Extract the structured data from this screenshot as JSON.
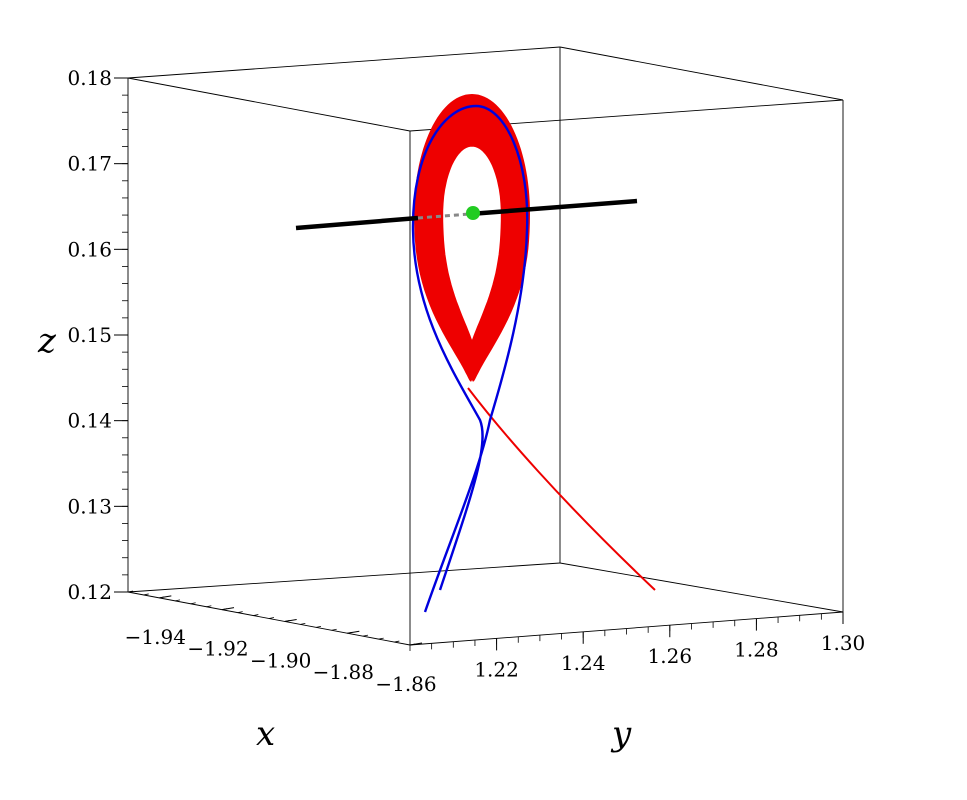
{
  "chart_data": {
    "type": "3d-line",
    "title": "",
    "xlabel": "x",
    "ylabel": "y",
    "zlabel": "z",
    "xlim": [
      -1.95,
      -1.86
    ],
    "ylim": [
      1.2,
      1.3
    ],
    "zlim": [
      0.12,
      0.18
    ],
    "x_ticks": [
      -1.94,
      -1.92,
      -1.9,
      -1.88,
      -1.86
    ],
    "x_tick_labels": [
      "−1.94",
      "−1.92",
      "−1.90",
      "−1.88",
      "−1.86"
    ],
    "y_ticks": [
      1.22,
      1.24,
      1.26,
      1.28,
      1.3
    ],
    "y_tick_labels": [
      "1.22",
      "1.24",
      "1.26",
      "1.28",
      "1.30"
    ],
    "z_ticks": [
      0.12,
      0.13,
      0.14,
      0.15,
      0.16,
      0.17,
      0.18
    ],
    "z_tick_labels": [
      "0.12",
      "0.13",
      "0.14",
      "0.15",
      "0.16",
      "0.17",
      "0.18"
    ],
    "grid": false,
    "legend": "none",
    "series": [
      {
        "role": "red spiral trajectory converging to limit cycle",
        "color": "#ee0000",
        "turns": 28
      },
      {
        "role": "blue boundary trajectory",
        "color": "#0000dd"
      },
      {
        "role": "black line through equilibrium",
        "color": "#000000",
        "z": 0.164
      }
    ],
    "markers": [
      {
        "role": "equilibrium point",
        "color": "#22cc22",
        "z": 0.1645
      }
    ]
  }
}
